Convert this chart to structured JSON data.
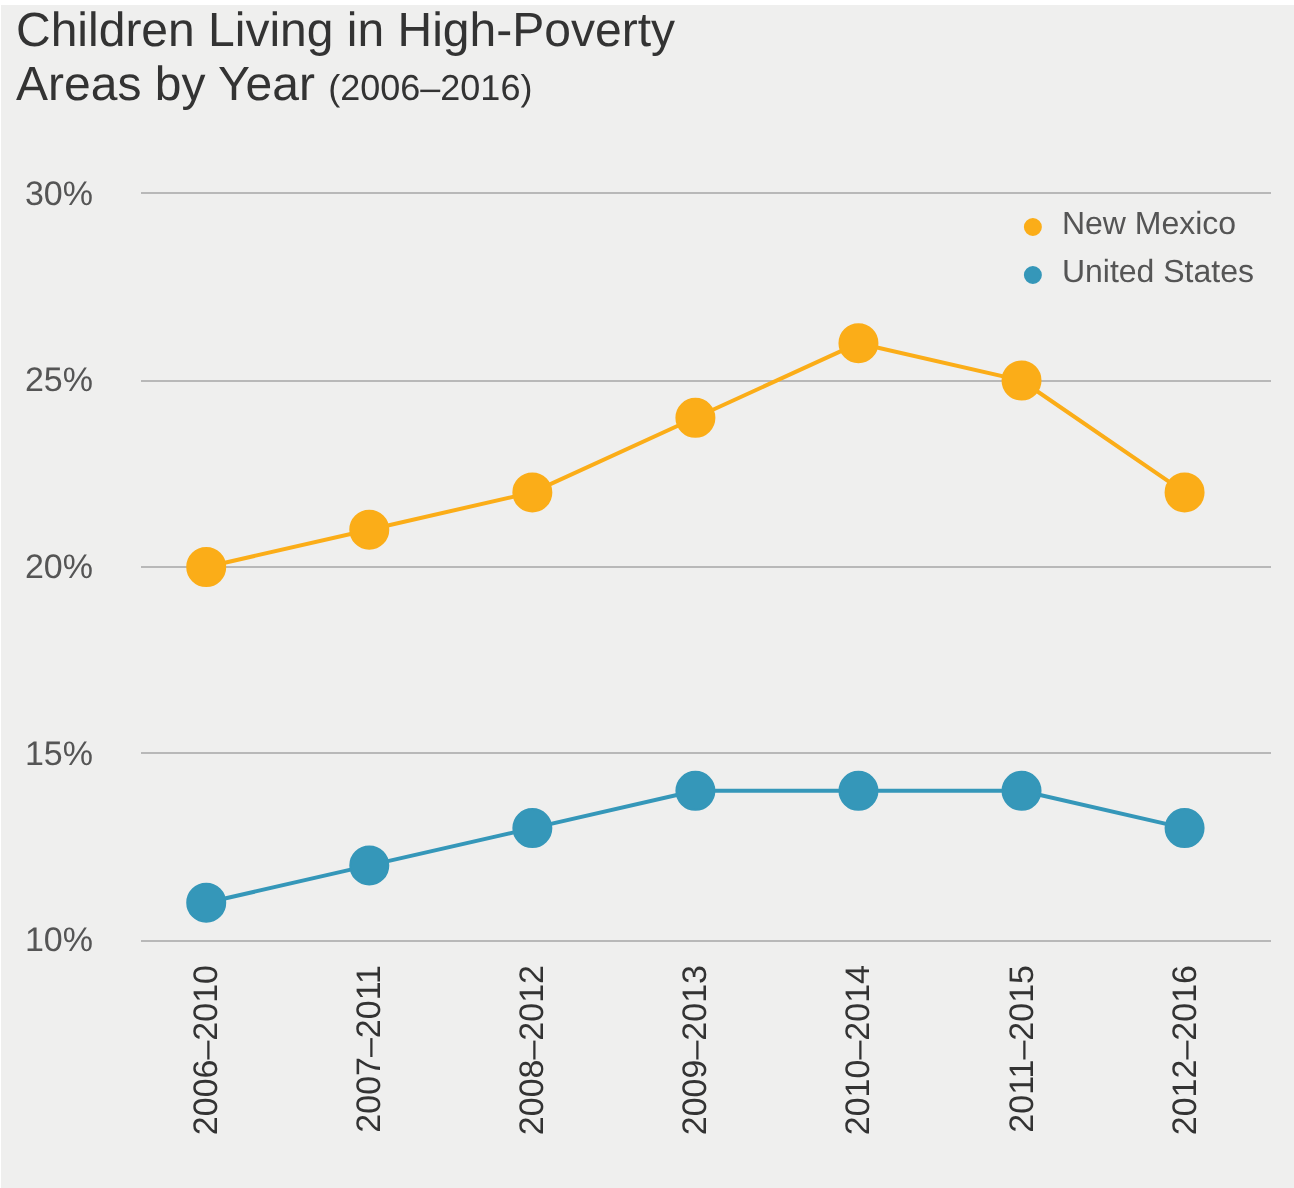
{
  "chart_data": {
    "type": "line",
    "title": "Children Living in High-Poverty Areas by Year",
    "subtitle": "(2006–2016)",
    "categories": [
      "2006–2010",
      "2007–2011",
      "2008–2012",
      "2009–2013",
      "2010–2014",
      "2011–2015",
      "2012–2016"
    ],
    "series": [
      {
        "name": "New Mexico",
        "color": "#fbad18",
        "values": [
          20,
          21,
          22,
          24,
          26,
          25,
          22
        ]
      },
      {
        "name": "United States",
        "color": "#3597b9",
        "values": [
          11,
          12,
          13,
          14,
          14,
          14,
          13
        ]
      }
    ],
    "ylim": [
      10,
      30
    ],
    "yticks": [
      {
        "value": 10,
        "label": "10%"
      },
      {
        "value": 15,
        "label": "15%"
      },
      {
        "value": 20,
        "label": "20%"
      },
      {
        "value": 25,
        "label": "25%"
      },
      {
        "value": 30,
        "label": "30%"
      }
    ],
    "grid": "y",
    "legend": "top right",
    "marker": "circle",
    "line_style": "solid"
  }
}
